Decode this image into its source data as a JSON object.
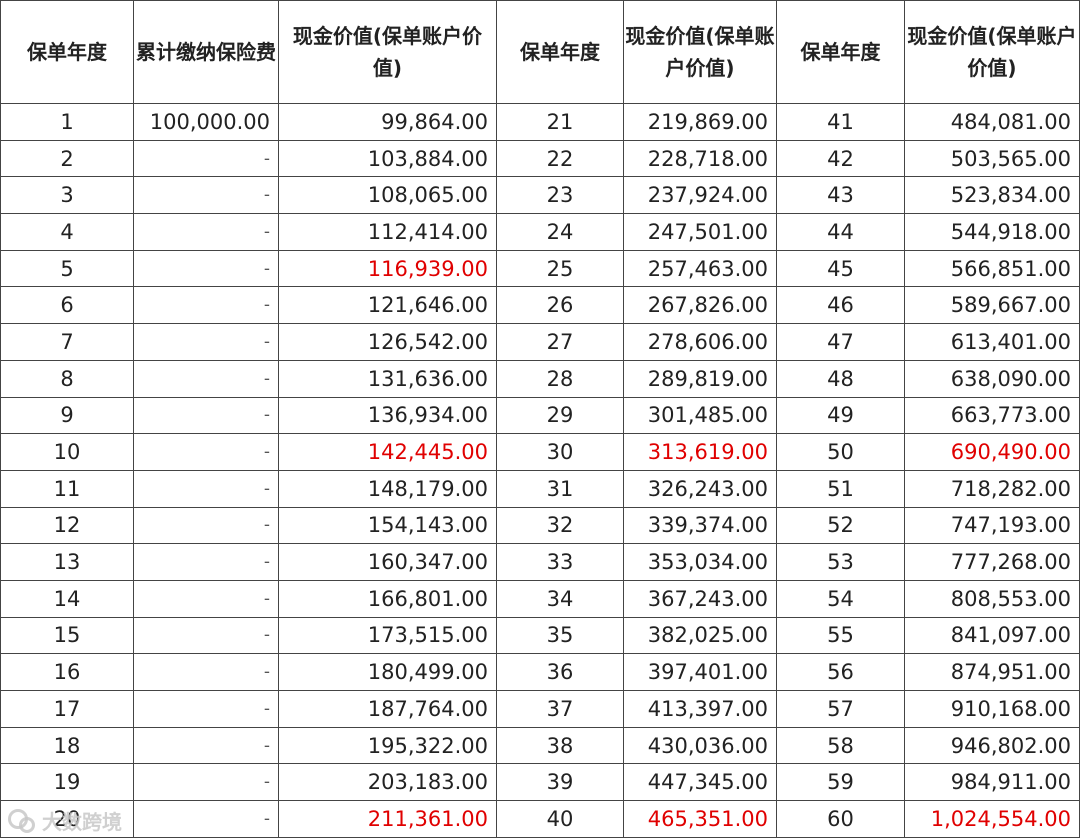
{
  "table": {
    "headers": [
      "保单年度",
      "累计缴纳保险费",
      "现金价值(保单账户价值)",
      "保单年度",
      "现金价值(保单账户价值)",
      "保单年度",
      "现金价值(保单账户价值)"
    ],
    "highlight_color": "#e00000",
    "rows": [
      {
        "y1": "1",
        "premium": "100,000.00",
        "v1": "99,864.00",
        "y2": "21",
        "v2": "219,869.00",
        "y3": "41",
        "v3": "484,081.00"
      },
      {
        "y1": "2",
        "premium": "-",
        "v1": "103,884.00",
        "y2": "22",
        "v2": "228,718.00",
        "y3": "42",
        "v3": "503,565.00"
      },
      {
        "y1": "3",
        "premium": "-",
        "v1": "108,065.00",
        "y2": "23",
        "v2": "237,924.00",
        "y3": "43",
        "v3": "523,834.00"
      },
      {
        "y1": "4",
        "premium": "-",
        "v1": "112,414.00",
        "y2": "24",
        "v2": "247,501.00",
        "y3": "44",
        "v3": "544,918.00"
      },
      {
        "y1": "5",
        "premium": "-",
        "v1": "116,939.00",
        "y2": "25",
        "v2": "257,463.00",
        "y3": "45",
        "v3": "566,851.00",
        "red": [
          "v1"
        ]
      },
      {
        "y1": "6",
        "premium": "-",
        "v1": "121,646.00",
        "y2": "26",
        "v2": "267,826.00",
        "y3": "46",
        "v3": "589,667.00"
      },
      {
        "y1": "7",
        "premium": "-",
        "v1": "126,542.00",
        "y2": "27",
        "v2": "278,606.00",
        "y3": "47",
        "v3": "613,401.00"
      },
      {
        "y1": "8",
        "premium": "-",
        "v1": "131,636.00",
        "y2": "28",
        "v2": "289,819.00",
        "y3": "48",
        "v3": "638,090.00"
      },
      {
        "y1": "9",
        "premium": "-",
        "v1": "136,934.00",
        "y2": "29",
        "v2": "301,485.00",
        "y3": "49",
        "v3": "663,773.00"
      },
      {
        "y1": "10",
        "premium": "-",
        "v1": "142,445.00",
        "y2": "30",
        "v2": "313,619.00",
        "y3": "50",
        "v3": "690,490.00",
        "red": [
          "v1",
          "v2",
          "v3"
        ]
      },
      {
        "y1": "11",
        "premium": "-",
        "v1": "148,179.00",
        "y2": "31",
        "v2": "326,243.00",
        "y3": "51",
        "v3": "718,282.00"
      },
      {
        "y1": "12",
        "premium": "-",
        "v1": "154,143.00",
        "y2": "32",
        "v2": "339,374.00",
        "y3": "52",
        "v3": "747,193.00"
      },
      {
        "y1": "13",
        "premium": "-",
        "v1": "160,347.00",
        "y2": "33",
        "v2": "353,034.00",
        "y3": "53",
        "v3": "777,268.00"
      },
      {
        "y1": "14",
        "premium": "-",
        "v1": "166,801.00",
        "y2": "34",
        "v2": "367,243.00",
        "y3": "54",
        "v3": "808,553.00"
      },
      {
        "y1": "15",
        "premium": "-",
        "v1": "173,515.00",
        "y2": "35",
        "v2": "382,025.00",
        "y3": "55",
        "v3": "841,097.00"
      },
      {
        "y1": "16",
        "premium": "-",
        "v1": "180,499.00",
        "y2": "36",
        "v2": "397,401.00",
        "y3": "56",
        "v3": "874,951.00"
      },
      {
        "y1": "17",
        "premium": "-",
        "v1": "187,764.00",
        "y2": "37",
        "v2": "413,397.00",
        "y3": "57",
        "v3": "910,168.00"
      },
      {
        "y1": "18",
        "premium": "-",
        "v1": "195,322.00",
        "y2": "38",
        "v2": "430,036.00",
        "y3": "58",
        "v3": "946,802.00"
      },
      {
        "y1": "19",
        "premium": "-",
        "v1": "203,183.00",
        "y2": "39",
        "v2": "447,345.00",
        "y3": "59",
        "v3": "984,911.00"
      },
      {
        "y1": "20",
        "premium": "-",
        "v1": "211,361.00",
        "y2": "40",
        "v2": "465,351.00",
        "y3": "60",
        "v3": "1,024,554.00",
        "red": [
          "v1",
          "v2",
          "v3"
        ]
      }
    ]
  },
  "watermark": {
    "icon": "weibo-logo-icon",
    "text": "大数跨境"
  }
}
